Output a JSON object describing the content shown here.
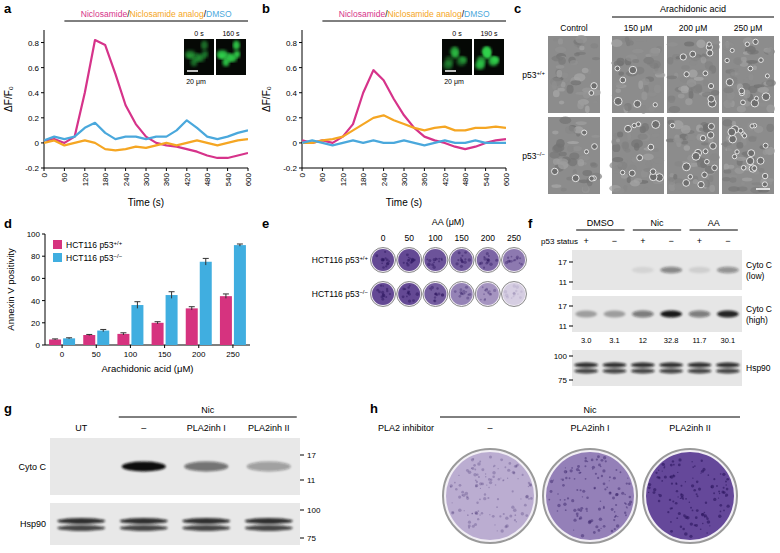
{
  "panel_labels": [
    "a",
    "b",
    "c",
    "d",
    "e",
    "f",
    "g",
    "h"
  ],
  "chart_data": [
    {
      "type": "line",
      "legend_separator": "/",
      "x_label": "Time (s)",
      "y_label": "ΔF/F₀",
      "x": [
        0,
        30,
        60,
        90,
        120,
        150,
        180,
        210,
        240,
        270,
        300,
        330,
        360,
        390,
        420,
        450,
        480,
        510,
        540,
        570,
        600
      ],
      "xlim": [
        0,
        600
      ],
      "xticks": [
        0,
        60,
        120,
        180,
        240,
        300,
        360,
        420,
        480,
        540,
        600
      ],
      "ylim": [
        -0.2,
        0.9
      ],
      "yticks": [
        -0.2,
        0,
        0.2,
        0.4,
        0.6,
        0.8
      ],
      "treatment": [
        60,
        600
      ],
      "inset_labels": [
        "0 s",
        "160 s"
      ],
      "scale_bar": "20 μm",
      "series": [
        {
          "name": "Niclosamide",
          "color": "#d6338a",
          "values": [
            0.02,
            0.03,
            0.0,
            0.05,
            0.4,
            0.82,
            0.78,
            0.55,
            0.3,
            0.15,
            0.05,
            0.0,
            -0.02,
            -0.03,
            -0.05,
            -0.07,
            -0.1,
            -0.12,
            -0.12,
            -0.1,
            -0.08
          ]
        },
        {
          "name": "Niclosamide analog",
          "color": "#f5a623",
          "values": [
            0.0,
            0.02,
            -0.02,
            0.0,
            0.02,
            0.0,
            -0.05,
            -0.06,
            -0.05,
            -0.03,
            -0.04,
            -0.02,
            0.0,
            -0.02,
            0.0,
            0.02,
            0.0,
            -0.02,
            0.0,
            0.02,
            0.03
          ]
        },
        {
          "name": "DMSO",
          "color": "#4aa8dc",
          "values": [
            0.02,
            0.05,
            0.03,
            0.05,
            0.12,
            0.16,
            0.08,
            0.03,
            0.05,
            0.05,
            0.03,
            0.05,
            0.05,
            0.1,
            0.18,
            0.12,
            0.05,
            0.03,
            0.05,
            0.08,
            0.1
          ]
        }
      ]
    },
    {
      "type": "line",
      "legend_separator": "/",
      "x_label": "Time (s)",
      "y_label": "ΔF/F₀",
      "x": [
        0,
        30,
        60,
        90,
        120,
        150,
        180,
        210,
        240,
        270,
        300,
        330,
        360,
        390,
        420,
        450,
        480,
        510,
        540,
        570,
        600
      ],
      "xlim": [
        0,
        600
      ],
      "xticks": [
        0,
        60,
        120,
        180,
        240,
        300,
        360,
        420,
        480,
        540,
        600
      ],
      "ylim": [
        -0.2,
        0.9
      ],
      "yticks": [
        -0.2,
        0,
        0.2,
        0.4,
        0.6,
        0.8
      ],
      "treatment": [
        60,
        600
      ],
      "inset_labels": [
        "0 s",
        "190 s"
      ],
      "scale_bar": "20 μm",
      "series": [
        {
          "name": "Niclosamide",
          "color": "#d6338a",
          "values": [
            0.02,
            0.0,
            0.02,
            0.0,
            0.05,
            0.15,
            0.4,
            0.58,
            0.5,
            0.35,
            0.22,
            0.12,
            0.05,
            0.02,
            0.0,
            -0.03,
            -0.05,
            -0.03,
            0.0,
            0.02,
            0.03
          ]
        },
        {
          "name": "Niclosamide analog",
          "color": "#f5a623",
          "values": [
            0.0,
            0.0,
            0.02,
            0.03,
            0.05,
            0.1,
            0.15,
            0.2,
            0.22,
            0.18,
            0.15,
            0.12,
            0.1,
            0.12,
            0.13,
            0.1,
            0.1,
            0.12,
            0.12,
            0.13,
            0.12
          ]
        },
        {
          "name": "DMSO",
          "color": "#4aa8dc",
          "values": [
            0.0,
            0.02,
            0.0,
            -0.02,
            0.0,
            0.02,
            0.0,
            0.02,
            0.0,
            0.0,
            0.02,
            0.0,
            -0.02,
            0.0,
            0.02,
            0.0,
            0.0,
            0.02,
            0.0,
            0.0,
            0.0
          ]
        }
      ]
    },
    {
      "type": "bar",
      "x_label": "Arachidonic acid (μM)",
      "y_label": "Annexin V positivity",
      "categories": [
        0,
        50,
        100,
        150,
        200,
        250
      ],
      "ylim": [
        0,
        100
      ],
      "yticks": [
        0,
        20,
        40,
        60,
        80,
        100
      ],
      "legend": "top-left",
      "series": [
        {
          "name": "HCT116 p53+/+",
          "color": "#d6337f",
          "values": [
            5,
            9,
            10,
            20,
            33,
            44
          ],
          "errors": [
            0.5,
            0.5,
            1,
            1,
            1.5,
            2
          ]
        },
        {
          "name": "HCT116 p53−/−",
          "color": "#40aee0",
          "values": [
            6,
            13,
            36,
            45,
            75,
            90
          ],
          "errors": [
            0.5,
            1,
            3,
            3,
            3,
            1
          ]
        }
      ]
    }
  ],
  "microscopy": {
    "header": "Arachidonic acid",
    "columns": [
      "Control",
      "150 μM",
      "200 μM",
      "250 μM"
    ],
    "rows": [
      "p53+/+",
      "p53−/−"
    ]
  },
  "colony_assay_e": {
    "header": "AA (μM)",
    "doses": [
      0,
      50,
      100,
      150,
      200,
      250
    ],
    "rows": [
      "HCT116 p53+/+",
      "HCT116 p53−/−"
    ],
    "stain": [
      [
        0.85,
        0.85,
        0.8,
        0.75,
        0.7,
        0.6
      ],
      [
        0.85,
        0.85,
        0.75,
        0.55,
        0.45,
        0.15
      ]
    ]
  },
  "blot_f": {
    "groups": [
      "DMSO",
      "Nic",
      "AA"
    ],
    "status_label": "p53 status",
    "status": [
      "+",
      "−",
      "+",
      "−",
      "+",
      "−"
    ],
    "panels": [
      {
        "label": "Cyto C",
        "sub": "(low)",
        "markers": [
          17,
          11
        ],
        "intensity": [
          0.0,
          0.0,
          0.08,
          0.45,
          0.1,
          0.4
        ]
      },
      {
        "label": "Cyto C",
        "sub": "(high)",
        "markers": [
          17,
          11
        ],
        "quantification": [
          {
            "value": 3.0,
            "label": "3.0"
          },
          {
            "value": 3.1,
            "label": "3.1"
          },
          {
            "value": 12,
            "label": "12"
          },
          {
            "value": 32.8,
            "label": "32.8"
          },
          {
            "value": 11.7,
            "label": "11.7"
          },
          {
            "value": 30.1,
            "label": "30.1"
          }
        ]
      },
      {
        "label": "Hsp90",
        "markers": [
          100,
          75
        ]
      }
    ]
  },
  "blot_g": {
    "group": "Nic",
    "lanes": [
      "UT",
      "–",
      "PLA2inh I",
      "PLA2inh II"
    ],
    "panels": [
      {
        "label": "Cyto C",
        "markers": [
          17,
          11
        ],
        "intensity": [
          0.0,
          1.0,
          0.55,
          0.35
        ]
      },
      {
        "label": "Hsp90",
        "markers": [
          100,
          75
        ]
      }
    ]
  },
  "colony_assay_h": {
    "group": "Nic",
    "row_label": "PLA2 inhibitor",
    "columns": [
      "–",
      "PLA2inh I",
      "PLA2inh II"
    ],
    "stain": [
      0.35,
      0.6,
      0.9
    ]
  }
}
